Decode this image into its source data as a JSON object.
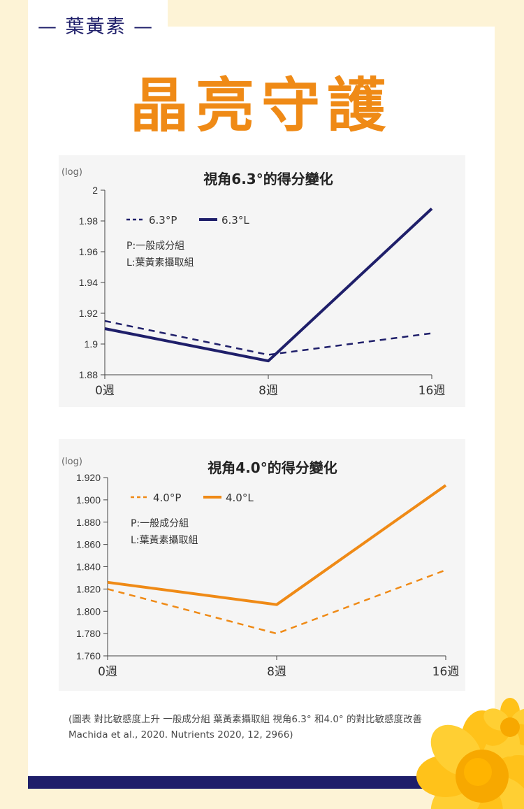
{
  "header": {
    "tab_label": "— 葉黃素 —",
    "headline": "晶亮守護"
  },
  "colors": {
    "navy": "#1f1f6a",
    "orange": "#ef8a16",
    "panel": "#f5f5f5",
    "background": "#fdf3d6"
  },
  "chart_data": [
    {
      "type": "line",
      "title": "視角6.3°的得分變化",
      "unit_label": "(log)",
      "categories": [
        "0週",
        "8週",
        "16週"
      ],
      "x": [
        0,
        8,
        16
      ],
      "ylim": [
        1.88,
        2.0
      ],
      "yticks": [
        1.88,
        1.9,
        1.92,
        1.94,
        1.96,
        1.98,
        2
      ],
      "ytick_labels": [
        "1.88",
        "1.9",
        "1.92",
        "1.94",
        "1.96",
        "1.98",
        "2"
      ],
      "legend_position": "top-left",
      "grid": false,
      "series": [
        {
          "name": "6.3°P",
          "style": "dashed",
          "color": "#1f1f6a",
          "values": [
            1.915,
            1.893,
            1.907
          ]
        },
        {
          "name": "6.3°L",
          "style": "solid",
          "color": "#1f1f6a",
          "values": [
            1.91,
            1.889,
            1.988
          ]
        }
      ],
      "legend_notes": [
        "P:一般成分組",
        "L:葉黃素攝取組"
      ]
    },
    {
      "type": "line",
      "title": "視角4.0°的得分變化",
      "unit_label": "(log)",
      "categories": [
        "0週",
        "8週",
        "16週"
      ],
      "x": [
        0,
        8,
        16
      ],
      "ylim": [
        1.76,
        1.92
      ],
      "yticks": [
        1.76,
        1.78,
        1.8,
        1.82,
        1.84,
        1.86,
        1.88,
        1.9,
        1.92
      ],
      "ytick_labels": [
        "1.760",
        "1.780",
        "1.800",
        "1.820",
        "1.840",
        "1.860",
        "1.880",
        "1.900",
        "1.920"
      ],
      "legend_position": "top-left",
      "grid": false,
      "series": [
        {
          "name": "4.0°P",
          "style": "dashed",
          "color": "#ef8a16",
          "values": [
            1.82,
            1.78,
            1.837
          ]
        },
        {
          "name": "4.0°L",
          "style": "solid",
          "color": "#ef8a16",
          "values": [
            1.826,
            1.806,
            1.913
          ]
        }
      ],
      "legend_notes": [
        "P:一般成分組",
        "L:葉黃素攝取組"
      ]
    }
  ],
  "footnote": {
    "line1": "(圖表 對比敏感度上升 一般成分組 葉黃素攝取組 視角6.3° 和4.0° 的對比敏感度改善",
    "line2": "Machida et al., 2020. Nutrients 2020, 12, 2966)"
  }
}
